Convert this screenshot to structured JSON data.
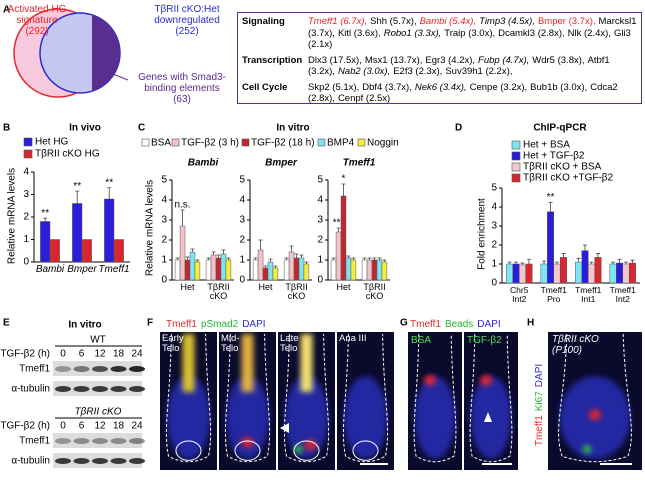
{
  "panel_labels": [
    "A",
    "B",
    "C",
    "D",
    "E",
    "F",
    "G",
    "H"
  ],
  "venn": {
    "sets": [
      {
        "label": "Activated HG signature",
        "count": "(292)",
        "color": "#e8262b"
      },
      {
        "label": "TβRII cKO:Het downregulated",
        "count": "(252)",
        "color": "#2a2ad0"
      },
      {
        "label": "Genes with Smad3-binding elements",
        "count": "(63)",
        "color": "#5a2d91"
      }
    ]
  },
  "gene_table": {
    "rows": [
      {
        "category": "Signaling",
        "genes": [
          {
            "text": "Tmeff1 (6.7x),",
            "italic": true,
            "color": "#e8262b"
          },
          {
            "text": "Shh (5.7x),"
          },
          {
            "text": "Bambi (5.4x),",
            "italic": true,
            "color": "#e8262b"
          },
          {
            "text": "Timp3 (4.5x),",
            "italic": true
          },
          {
            "text": "Bmper (3.7x),",
            "color": "#e8262b"
          },
          {
            "text": "Marcksl1 (3.7x),"
          },
          {
            "text": "Kitl (3.6x),"
          },
          {
            "text": "Robo1 (3.3x),",
            "italic": true
          },
          {
            "text": "Traip (3.0x),"
          },
          {
            "text": "Dcamkl3 (2.8x),"
          },
          {
            "text": "Nlk (2.4x),"
          },
          {
            "text": "Gli3 (2.1x)"
          }
        ]
      },
      {
        "category": "Transcription",
        "genes": [
          {
            "text": "Dlx3 (17.5x),"
          },
          {
            "text": "Msx1 (13.7x),"
          },
          {
            "text": "Egr3 (4.2x),"
          },
          {
            "text": "Fubp (4.7x),",
            "italic": true
          },
          {
            "text": "Wdr5 (3.8x),"
          },
          {
            "text": "Atbf1 (3.2x),"
          },
          {
            "text": "Nab2 (3.0x),",
            "italic": true
          },
          {
            "text": "E2f3 (2.3x),"
          },
          {
            "text": "Suv39h1 (2.2x),"
          }
        ]
      },
      {
        "category": "Cell Cycle",
        "genes": [
          {
            "text": "Skp2 (5.1x),"
          },
          {
            "text": "Dbf4 (3.7x),"
          },
          {
            "text": "Nek6 (3.4x),",
            "italic": true
          },
          {
            "text": "Cenpe (3.2x),"
          },
          {
            "text": "Bub1b (3.0x),"
          },
          {
            "text": "Cdca2 (2.8x),"
          },
          {
            "text": "Cenpf (2.5x)"
          }
        ]
      }
    ]
  },
  "chart_data": [
    {
      "type": "bar",
      "title": "In vivo",
      "ylabel": "Relative mRNA levels",
      "categories": [
        "Bambi",
        "Bmper",
        "Tmeff1"
      ],
      "series": [
        {
          "name": "Het HG",
          "color": "#2a1ed8",
          "values": [
            1.8,
            2.6,
            2.8
          ],
          "errors": [
            0.15,
            0.55,
            0.5
          ],
          "significance": [
            "**",
            "**",
            "**"
          ]
        },
        {
          "name": "TβRII cKO HG",
          "color": "#d7282f",
          "values": [
            1,
            1,
            1
          ]
        }
      ],
      "ylim": [
        0,
        4
      ],
      "yticks": [
        0,
        1,
        2,
        3,
        4
      ]
    },
    {
      "type": "bar",
      "title": "In vitro",
      "ylabel": "Relative mRNA levels",
      "series": [
        {
          "name": "BSA",
          "color": "#ffffff"
        },
        {
          "name": "TGF-β2 (3 h)",
          "color": "#f4c2c6"
        },
        {
          "name": "TGF-β2 (18 h)",
          "color": "#c0282f"
        },
        {
          "name": "BMP4",
          "color": "#7fe3f0"
        },
        {
          "name": "Noggin",
          "color": "#f5ee3a"
        }
      ],
      "panels": [
        {
          "title": "Bambi",
          "categories": [
            "Het",
            "TβRII cKO"
          ],
          "ylim": [
            0,
            5
          ],
          "yticks": [
            0,
            1,
            2,
            3,
            4,
            5
          ],
          "series": [
            {
              "values": [
                1,
                1
              ],
              "errors": [
                0.1,
                0.1
              ]
            },
            {
              "values": [
                2.7,
                1.25
              ],
              "errors": [
                0.8,
                0.15
              ],
              "significance": [
                "n.s.",
                null
              ]
            },
            {
              "values": [
                1,
                1.1
              ],
              "errors": [
                0.15,
                0.15
              ]
            },
            {
              "values": [
                1.4,
                1.3
              ],
              "errors": [
                0.15,
                0.2
              ]
            },
            {
              "values": [
                0.9,
                1.0
              ],
              "errors": [
                0.1,
                0.1
              ]
            }
          ]
        },
        {
          "title": "Bmper",
          "categories": [
            "Het",
            "TβRII cKO"
          ],
          "ylim": [
            0,
            5
          ],
          "yticks": [
            0,
            1,
            2,
            3,
            4,
            5
          ],
          "series": [
            {
              "values": [
                1,
                1
              ],
              "errors": [
                0.1,
                0.1
              ]
            },
            {
              "values": [
                1.5,
                1.4
              ],
              "errors": [
                0.5,
                0.3
              ]
            },
            {
              "values": [
                0.6,
                1.1
              ],
              "errors": [
                0.1,
                0.2
              ]
            },
            {
              "values": [
                0.9,
                1.1
              ],
              "errors": [
                0.15,
                0.15
              ]
            },
            {
              "values": [
                0.6,
                0.8
              ],
              "errors": [
                0.1,
                0.1
              ]
            }
          ]
        },
        {
          "title": "Tmeff1",
          "categories": [
            "Het",
            "TβRII cKO"
          ],
          "ylim": [
            0,
            5
          ],
          "yticks": [
            0,
            1,
            2,
            3,
            4,
            5
          ],
          "series": [
            {
              "values": [
                1,
                1
              ],
              "errors": [
                0.1,
                0.1
              ]
            },
            {
              "values": [
                2.4,
                1.0
              ],
              "errors": [
                0.2,
                0.1
              ],
              "significance": [
                "***",
                null
              ]
            },
            {
              "values": [
                4.2,
                1.0
              ],
              "errors": [
                0.6,
                0.1
              ],
              "significance": [
                "*",
                null
              ]
            },
            {
              "values": [
                1.1,
                1.0
              ],
              "errors": [
                0.1,
                0.1
              ]
            },
            {
              "values": [
                1.0,
                0.9
              ],
              "errors": [
                0.1,
                0.1
              ]
            }
          ]
        }
      ]
    },
    {
      "type": "bar",
      "title": "ChIP-qPCR",
      "ylabel": "Fold enrichment",
      "categories": [
        "Chr5 Int2",
        "Tmeff1 Pro",
        "Tmeff1 Int1",
        "Tmeff1 Int2"
      ],
      "series": [
        {
          "name": "Het + BSA",
          "color": "#7de6f2",
          "values": [
            1.0,
            1.0,
            1.1,
            1.0
          ],
          "errors": [
            0.1,
            0.15,
            0.2,
            0.1
          ]
        },
        {
          "name": "Het + TGF-β2",
          "color": "#2a1ed8",
          "values": [
            1.0,
            3.75,
            1.7,
            1.05
          ],
          "errors": [
            0.1,
            0.5,
            0.3,
            0.2
          ],
          "significance": [
            null,
            "**",
            null,
            null
          ]
        },
        {
          "name": "TβRII cKO + BSA",
          "color": "#f2c8cc",
          "values": [
            0.95,
            1.0,
            1.0,
            1.0
          ],
          "errors": [
            0.1,
            0.1,
            0.1,
            0.1
          ]
        },
        {
          "name": "TβRII cKO +TGF-β2",
          "color": "#d7282f",
          "values": [
            1.0,
            1.35,
            1.35,
            1.05
          ],
          "errors": [
            0.25,
            0.2,
            0.2,
            0.15
          ]
        }
      ],
      "ylim": [
        0,
        5
      ],
      "yticks": [
        0,
        1,
        2,
        3,
        4,
        5
      ]
    }
  ],
  "blots": {
    "title": "In vitro",
    "groups": [
      {
        "genotype": "WT",
        "time_label": "TGF-β2 (h)",
        "lanes": [
          0,
          6,
          12,
          18,
          24
        ],
        "bands": [
          "Tmeff1",
          "α-tubulin"
        ]
      },
      {
        "genotype": "TβRII cKO",
        "time_label": "TGF-β2 (h)",
        "lanes": [
          0,
          6,
          12,
          18,
          24
        ],
        "bands": [
          "Tmeff1",
          "α-tubulin"
        ]
      }
    ]
  },
  "micrographs": {
    "F": {
      "stains": [
        {
          "text": "Tmeff1",
          "color": "#e8262b"
        },
        {
          "text": "pSmad2",
          "color": "#22b830"
        },
        {
          "text": "DAPI",
          "color": "#2a2ad0"
        }
      ],
      "panels": [
        {
          "text": "Early Telo",
          "color": "#ffffff"
        },
        {
          "text": "Mid-Telo",
          "color": "#ffffff"
        },
        {
          "text": "Late Telo",
          "color": "#ffffff"
        },
        {
          "text": "Ana III",
          "color": "#ffffff"
        }
      ]
    },
    "G": {
      "stains": [
        {
          "text": "Tmeff1",
          "color": "#e8262b"
        },
        {
          "text": "Beads",
          "color": "#22b830"
        },
        {
          "text": "DAPI",
          "color": "#2a2ad0"
        }
      ],
      "panels": [
        {
          "text": "BSA",
          "color": "#4be04b"
        },
        {
          "text": "TGF-β2",
          "color": "#4be04b"
        }
      ]
    },
    "H": {
      "stains": [
        {
          "text": "Tmeff1",
          "color": "#e8262b"
        },
        {
          "text": "Ki67",
          "color": "#22b830"
        },
        {
          "text": "DAPI",
          "color": "#2a2ad0"
        }
      ],
      "panels": [
        {
          "text": "TβRII cKO (P100)",
          "color": "#ffffff"
        }
      ]
    }
  }
}
